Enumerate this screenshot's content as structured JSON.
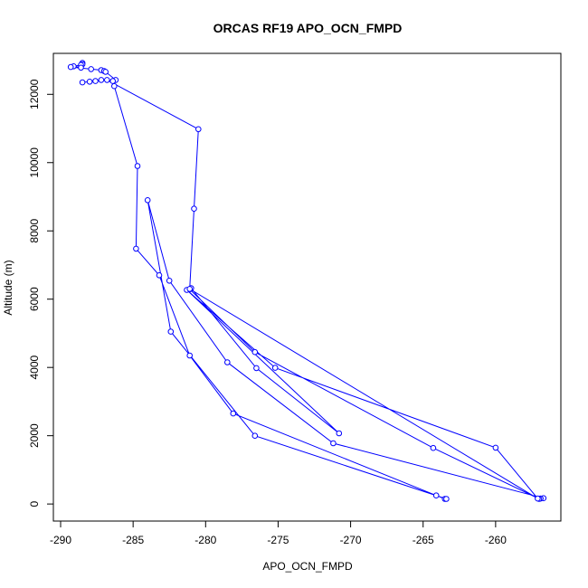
{
  "chart_data": {
    "type": "line",
    "title": "ORCAS RF19 APO_OCN_FMPD",
    "xlabel": "APO_OCN_FMPD",
    "ylabel": "Altitude (m)",
    "xlim": [
      -290.5,
      -255.5
    ],
    "ylim": [
      -500,
      13200
    ],
    "x_ticks": [
      -290,
      -285,
      -280,
      -275,
      -270,
      -265,
      -260
    ],
    "x_tick_labels": [
      "-290",
      "-285",
      "-280",
      "-275",
      "-270",
      "-265",
      "-260"
    ],
    "y_ticks": [
      0,
      2000,
      4000,
      6000,
      8000,
      10000,
      12000
    ],
    "y_tick_labels": [
      "0",
      "2000",
      "4000",
      "6000",
      "8000",
      "10000",
      "12000"
    ],
    "grid": false,
    "marker": "open-circle",
    "series": [
      {
        "color": "#0000ff",
        "points": [
          [
            -288.5,
            12920
          ],
          [
            -288.5,
            12880
          ],
          [
            -288.6,
            12860
          ],
          [
            -289.1,
            12820
          ],
          [
            -288.6,
            12780
          ],
          [
            -289.3,
            12800
          ],
          [
            -287.9,
            12740
          ],
          [
            -287.2,
            12710
          ],
          [
            -287.0,
            12680
          ],
          [
            -286.9,
            12660
          ],
          [
            -286.2,
            12420
          ],
          [
            -286.4,
            12390
          ],
          [
            -286.3,
            12240
          ],
          [
            -284.7,
            9900
          ],
          [
            -284.8,
            7480
          ],
          [
            -283.2,
            6700
          ],
          [
            -281.1,
            4350
          ],
          [
            -278.1,
            2650
          ],
          [
            -264.1,
            250
          ],
          [
            -263.5,
            150
          ],
          [
            -263.4,
            150
          ],
          [
            -276.6,
            2000
          ],
          [
            -282.4,
            5050
          ],
          [
            -284.0,
            8900
          ],
          [
            -282.5,
            6540
          ],
          [
            -278.5,
            4150
          ],
          [
            -271.2,
            1780
          ],
          [
            -256.7,
            170
          ],
          [
            -256.9,
            160
          ],
          [
            -257.0,
            150
          ],
          [
            -264.3,
            1640
          ],
          [
            -276.6,
            4450
          ],
          [
            -281.1,
            6290
          ],
          [
            -281.0,
            6320
          ],
          [
            -276.5,
            3980
          ],
          [
            -270.8,
            2070
          ],
          [
            -281.3,
            6270
          ],
          [
            -275.2,
            3990
          ],
          [
            -260.0,
            1650
          ],
          [
            -257.1,
            160
          ],
          [
            -281.1,
            6300
          ],
          [
            -280.8,
            8650
          ],
          [
            -280.5,
            10980
          ],
          [
            -286.8,
            12420
          ],
          [
            -287.2,
            12420
          ],
          [
            -287.6,
            12390
          ],
          [
            -288.0,
            12370
          ],
          [
            -288.5,
            12350
          ]
        ]
      }
    ]
  }
}
